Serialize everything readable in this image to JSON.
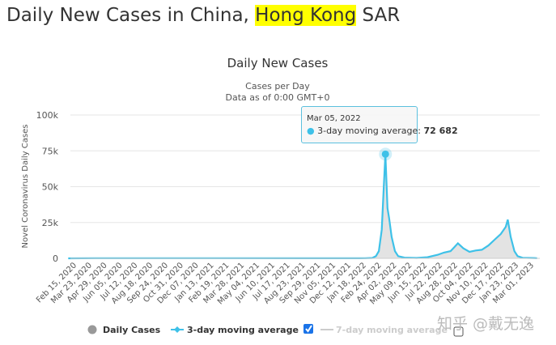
{
  "page_title": {
    "prefix": "Daily New Cases in China, ",
    "highlight": "Hong Kong",
    "suffix": " SAR"
  },
  "watermark": "知乎 @戴无逸",
  "chart_data": {
    "type": "area",
    "title": "Daily New Cases",
    "subtitle_1": "Cases per Day",
    "subtitle_2": "Data as of 0:00 GMT+0",
    "ylabel": "Novel Coronavirus Daily Cases",
    "ylim": [
      0,
      100000
    ],
    "yticks": [
      {
        "v": 0,
        "label": "0"
      },
      {
        "v": 25000,
        "label": "25k"
      },
      {
        "v": 50000,
        "label": "50k"
      },
      {
        "v": 75000,
        "label": "75k"
      },
      {
        "v": 100000,
        "label": "100k"
      }
    ],
    "xticks": [
      "Feb 15, 2020",
      "Mar 23, 2020",
      "Apr 29, 2020",
      "Jun 05, 2020",
      "Jul 12, 2020",
      "Aug 18, 2020",
      "Sep 24, 2020",
      "Oct 31, 2020",
      "Dec 07, 2020",
      "Jan 13, 2021",
      "Feb 19, 2021",
      "Mar 28, 2021",
      "May 04, 2021",
      "Jun 10, 2021",
      "Jul 17, 2021",
      "Aug 23, 2021",
      "Sep 29, 2021",
      "Nov 05, 2021",
      "Dec 12, 2021",
      "Jan 18, 2022",
      "Feb 24, 2022",
      "Apr 02, 2022",
      "May 09, 2022",
      "Jun 15, 2022",
      "Jul 22, 2022",
      "Aug 28, 2022",
      "Oct 04, 2022",
      "Nov 10, 2022",
      "Dec 17, 2022",
      "Jan 23, 2023",
      "Mar 01, 2023"
    ],
    "series": [
      {
        "name": "Daily Cases",
        "color": "#999999",
        "kind": "area"
      },
      {
        "name": "3-day moving average",
        "color": "#3ec1e8",
        "kind": "line",
        "checked": true
      },
      {
        "name": "7-day moving average",
        "color": "#cccccc",
        "kind": "line",
        "checked": false
      }
    ],
    "points": [
      [
        "2020-01-25",
        0
      ],
      [
        "2020-04-01",
        100
      ],
      [
        "2020-08-01",
        100
      ],
      [
        "2021-12-31",
        50
      ],
      [
        "2022-01-15",
        100
      ],
      [
        "2022-02-01",
        300
      ],
      [
        "2022-02-10",
        1500
      ],
      [
        "2022-02-17",
        5000
      ],
      [
        "2022-02-24",
        20000
      ],
      [
        "2022-03-01",
        50000
      ],
      [
        "2022-03-05",
        72682
      ],
      [
        "2022-03-10",
        35000
      ],
      [
        "2022-03-14",
        28000
      ],
      [
        "2022-03-20",
        15000
      ],
      [
        "2022-03-28",
        5000
      ],
      [
        "2022-04-05",
        1500
      ],
      [
        "2022-04-20",
        500
      ],
      [
        "2022-05-20",
        300
      ],
      [
        "2022-06-15",
        800
      ],
      [
        "2022-07-10",
        2500
      ],
      [
        "2022-07-25",
        4000
      ],
      [
        "2022-08-10",
        5000
      ],
      [
        "2022-08-20",
        8000
      ],
      [
        "2022-08-28",
        10500
      ],
      [
        "2022-09-10",
        7000
      ],
      [
        "2022-09-25",
        4500
      ],
      [
        "2022-10-10",
        5500
      ],
      [
        "2022-10-25",
        6000
      ],
      [
        "2022-11-10",
        9000
      ],
      [
        "2022-11-25",
        13000
      ],
      [
        "2022-12-10",
        17000
      ],
      [
        "2022-12-22",
        22000
      ],
      [
        "2022-12-27",
        27000
      ],
      [
        "2023-01-03",
        15000
      ],
      [
        "2023-01-12",
        5000
      ],
      [
        "2023-01-20",
        1500
      ],
      [
        "2023-02-01",
        400
      ],
      [
        "2023-03-01",
        200
      ],
      [
        "2023-03-08",
        100
      ]
    ],
    "tooltip": {
      "date": "Mar 05, 2022",
      "series": "3-day moving average: ",
      "value": "72 682",
      "x": "2022-03-05",
      "y": 72682
    }
  }
}
